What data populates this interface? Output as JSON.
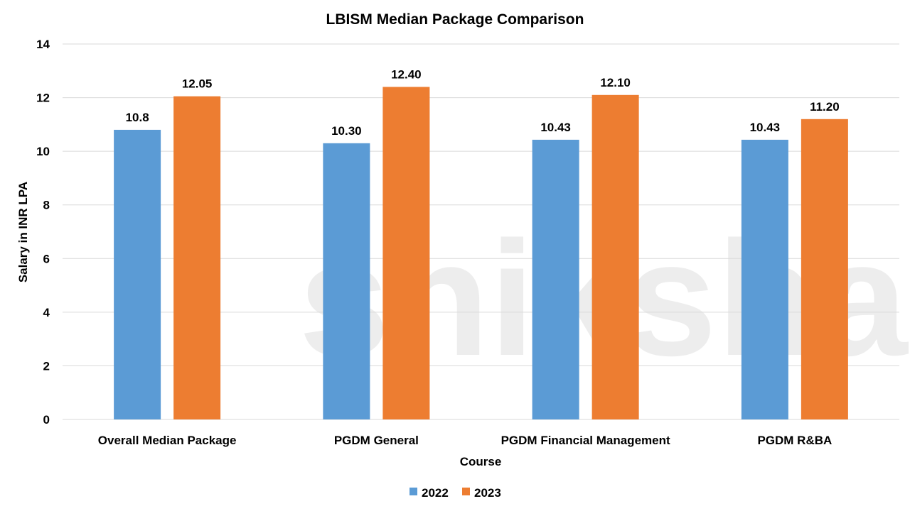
{
  "chart_data": {
    "type": "bar",
    "title": "LBISM Median Package Comparison",
    "xlabel": "Course",
    "ylabel": "Salary in INR LPA",
    "categories": [
      "Overall Median Package",
      "PGDM General",
      "PGDM Financial Management",
      "PGDM R&BA"
    ],
    "series": [
      {
        "name": "2022",
        "values": [
          10.8,
          10.3,
          10.43,
          10.43
        ],
        "labels": [
          "10.8",
          "10.30",
          "10.43",
          "10.43"
        ],
        "color": "#5B9BD5"
      },
      {
        "name": "2023",
        "values": [
          12.05,
          12.4,
          12.1,
          11.2
        ],
        "labels": [
          "12.05",
          "12.40",
          "12.10",
          "11.20"
        ],
        "color": "#ED7D31"
      }
    ],
    "ylim": [
      0,
      14
    ],
    "yticks": [
      0,
      2,
      4,
      6,
      8,
      10,
      12,
      14
    ],
    "grid": true,
    "legend": "bottom",
    "watermark": "shiksha"
  }
}
